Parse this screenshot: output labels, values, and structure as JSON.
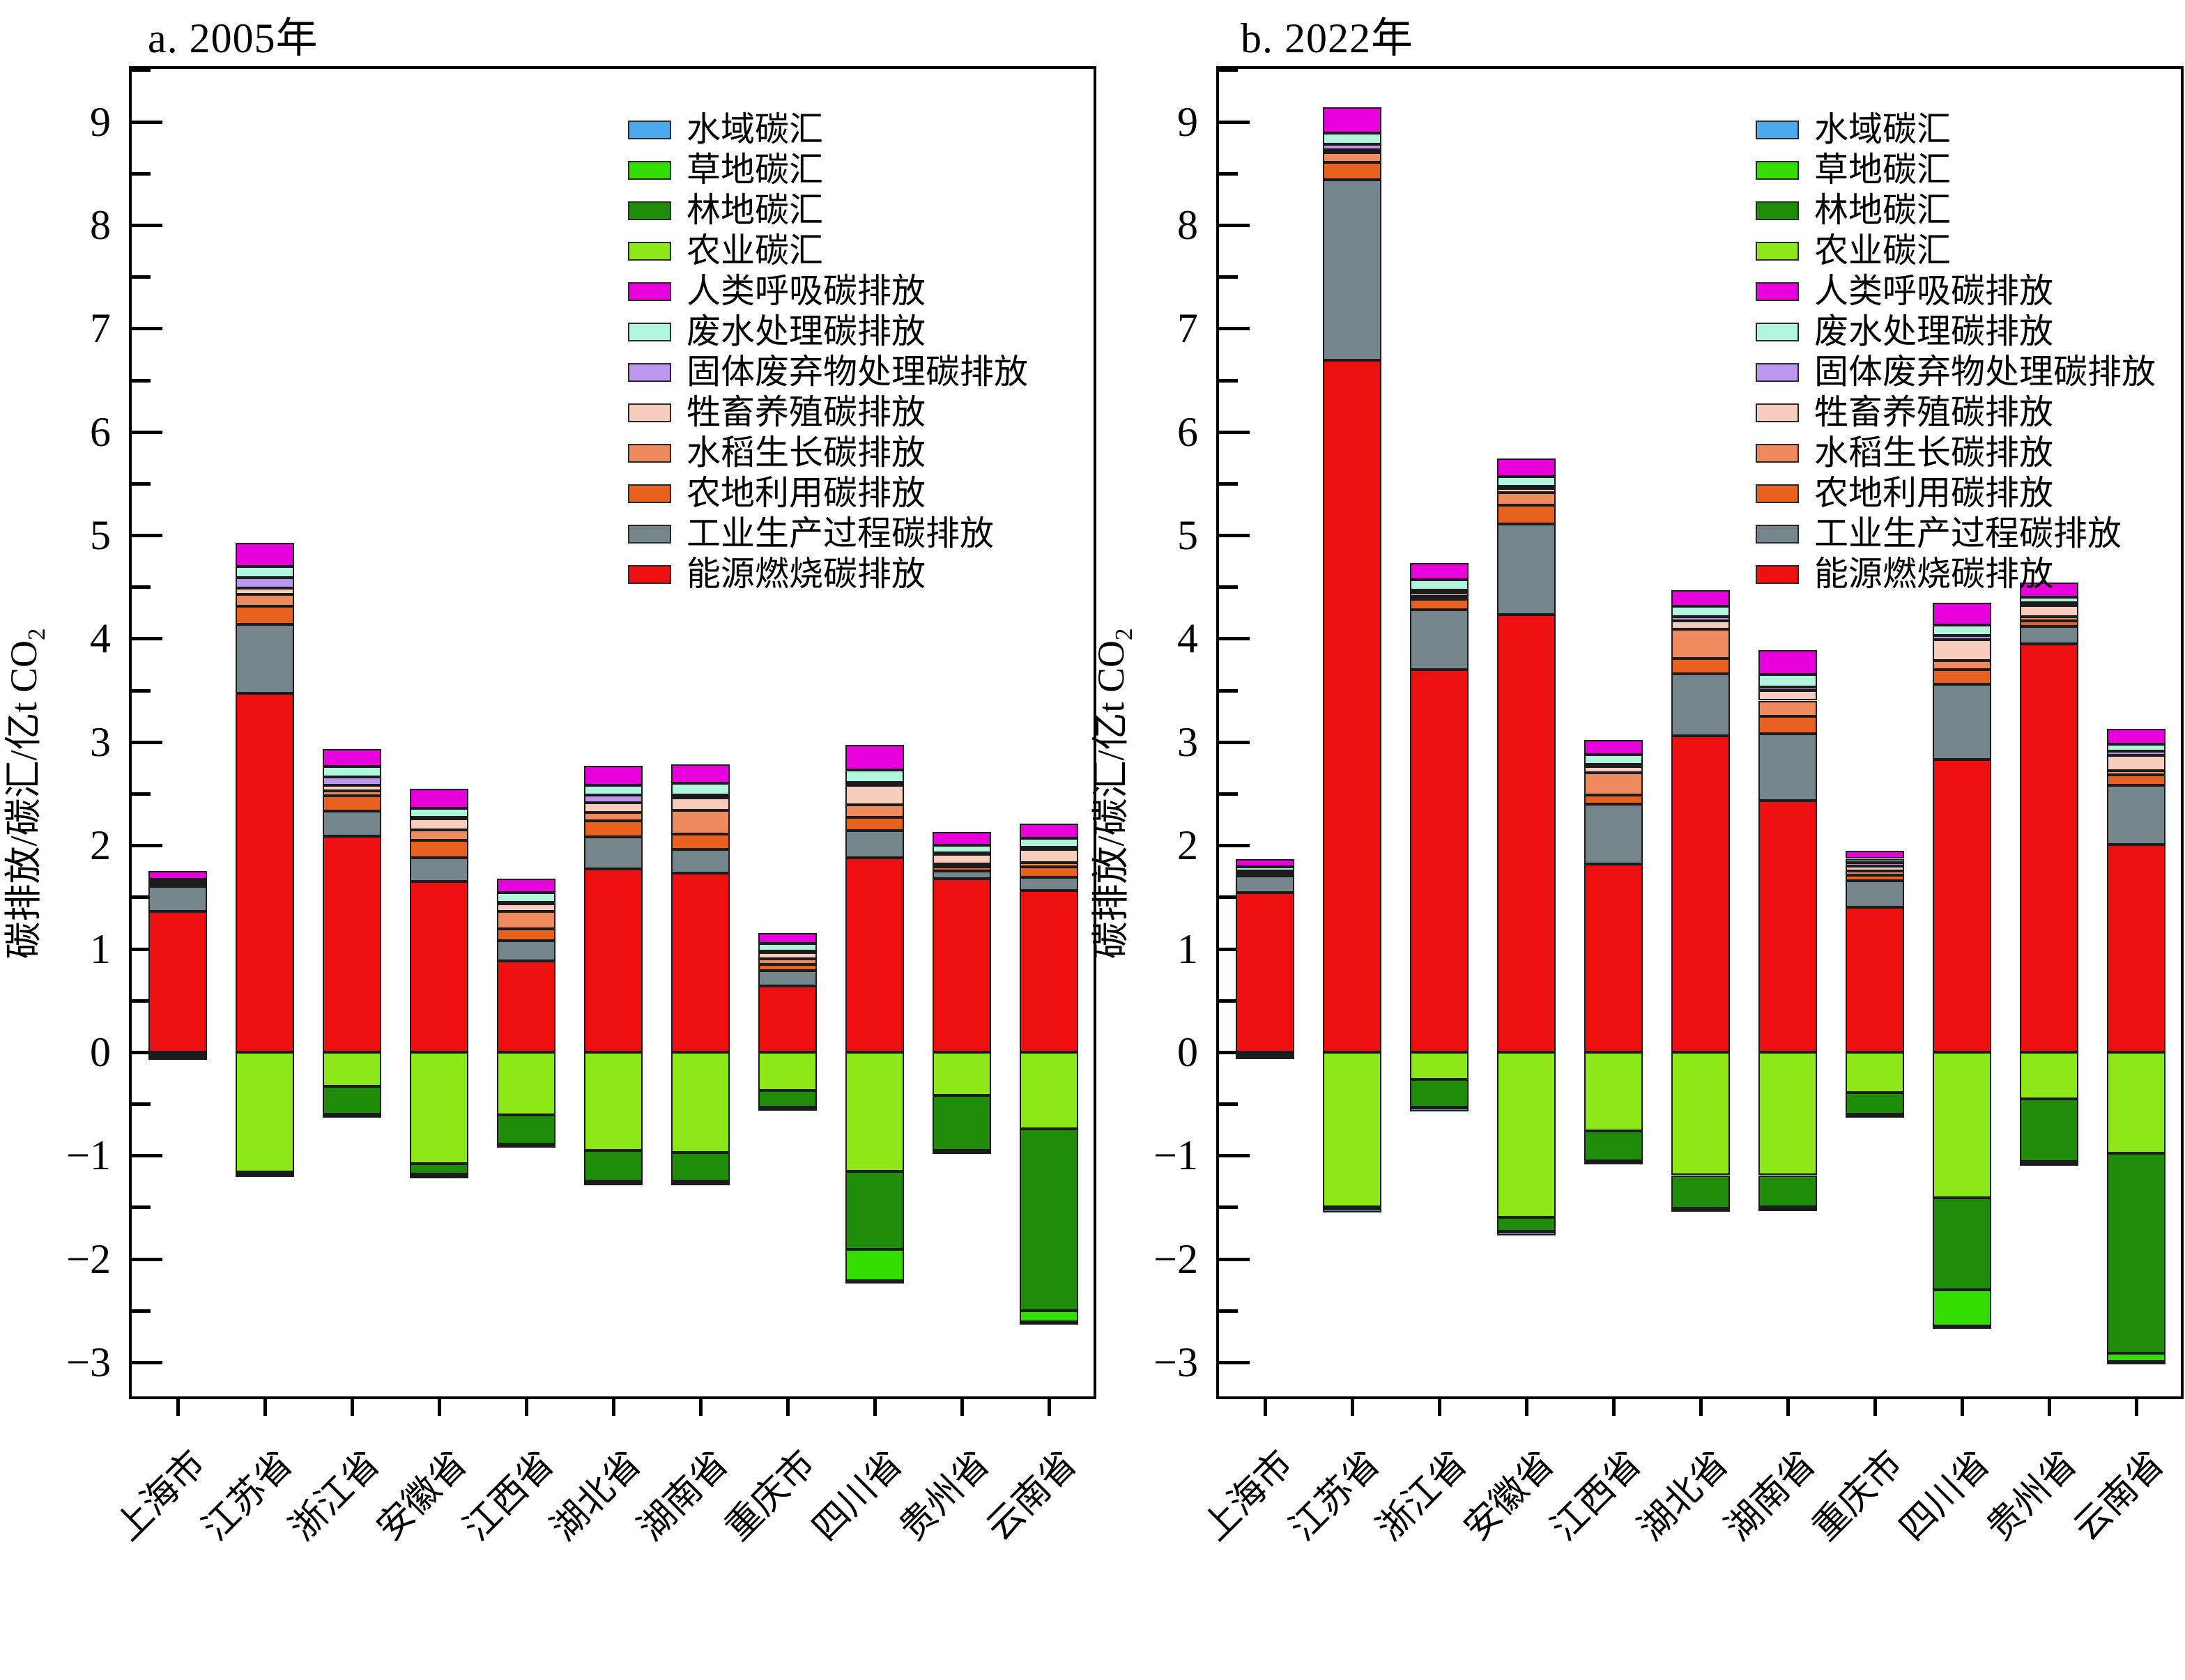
{
  "figure": {
    "ylabel_main": "碳排放/碳汇/亿t CO",
    "ylabel_sub": "2",
    "y_axis": {
      "min": -3,
      "max": 9,
      "major_step": 1,
      "minor_step": 0.5,
      "top_value": 9.51,
      "bottom_value": -3.33,
      "grid": "off"
    },
    "y_ticks": [
      {
        "value": 9,
        "label": "9"
      },
      {
        "value": 8,
        "label": "8"
      },
      {
        "value": 7,
        "label": "7"
      },
      {
        "value": 6,
        "label": "6"
      },
      {
        "value": 5,
        "label": "5"
      },
      {
        "value": 4,
        "label": "4"
      },
      {
        "value": 3,
        "label": "3"
      },
      {
        "value": 2,
        "label": "2"
      },
      {
        "value": 1,
        "label": "1"
      },
      {
        "value": 0,
        "label": "0"
      },
      {
        "value": -1,
        "label": "−1"
      },
      {
        "value": -2,
        "label": "−2"
      },
      {
        "value": -3,
        "label": "−3"
      }
    ]
  },
  "legend": [
    {
      "label": "水域碳汇",
      "color": "#4DA8EC"
    },
    {
      "label": "草地碳汇",
      "color": "#33DD00"
    },
    {
      "label": "林地碳汇",
      "color": "#1F8C0A"
    },
    {
      "label": "农业碳汇",
      "color": "#8EE818"
    },
    {
      "label": "人类呼吸碳排放",
      "color": "#E800DC"
    },
    {
      "label": "废水处理碳排放",
      "color": "#B2F5DF"
    },
    {
      "label": "固体废弃物处理碳排放",
      "color": "#BB95EE"
    },
    {
      "label": "牲畜养殖碳排放",
      "color": "#F6CDBC"
    },
    {
      "label": "水稻生长碳排放",
      "color": "#EE8A5D"
    },
    {
      "label": "农地利用碳排放",
      "color": "#E8611E"
    },
    {
      "label": "工业生产过程碳排放",
      "color": "#74868C"
    },
    {
      "label": "能源燃烧碳排放",
      "color": "#EE1010"
    }
  ],
  "provinces": [
    "上海市",
    "江苏省",
    "浙江省",
    "安徽省",
    "江西省",
    "湖北省",
    "湖南省",
    "重庆市",
    "四川省",
    "贵州省",
    "云南省"
  ],
  "chart_data": [
    {
      "type": "bar-stacked",
      "title": "a. 2005年",
      "categories": [
        "上海市",
        "江苏省",
        "浙江省",
        "安徽省",
        "江西省",
        "湖北省",
        "湖南省",
        "重庆市",
        "四川省",
        "贵州省",
        "云南省"
      ],
      "series": [
        {
          "name": "能源燃烧碳排放",
          "color": "#EE1010",
          "values": [
            1.36,
            3.47,
            2.09,
            1.65,
            0.88,
            1.77,
            1.73,
            0.64,
            1.88,
            1.68,
            1.56
          ]
        },
        {
          "name": "工业生产过程碳排放",
          "color": "#74868C",
          "values": [
            0.25,
            0.67,
            0.24,
            0.23,
            0.2,
            0.31,
            0.23,
            0.15,
            0.26,
            0.07,
            0.13
          ]
        },
        {
          "name": "农地利用碳排放",
          "color": "#E8611E",
          "values": [
            0.01,
            0.17,
            0.15,
            0.17,
            0.11,
            0.16,
            0.15,
            0.06,
            0.13,
            0.04,
            0.1
          ]
        },
        {
          "name": "水稻生长碳排放",
          "color": "#EE8A5D",
          "values": [
            0.01,
            0.12,
            0.05,
            0.1,
            0.17,
            0.08,
            0.23,
            0.05,
            0.12,
            0.03,
            0.04
          ]
        },
        {
          "name": "牲畜养殖碳排放",
          "color": "#F6CDBC",
          "values": [
            0.01,
            0.06,
            0.05,
            0.11,
            0.08,
            0.09,
            0.12,
            0.07,
            0.19,
            0.1,
            0.13
          ]
        },
        {
          "name": "固体废弃物处理碳排放",
          "color": "#BB95EE",
          "values": [
            0.01,
            0.1,
            0.08,
            0.01,
            0.01,
            0.08,
            0.03,
            0.01,
            0.03,
            0.01,
            0.02
          ]
        },
        {
          "name": "废水处理碳排放",
          "color": "#B2F5DF",
          "values": [
            0.02,
            0.11,
            0.1,
            0.09,
            0.09,
            0.09,
            0.11,
            0.07,
            0.12,
            0.07,
            0.09
          ]
        },
        {
          "name": "人类呼吸碳排放",
          "color": "#E800DC",
          "values": [
            0.08,
            0.23,
            0.17,
            0.19,
            0.14,
            0.19,
            0.18,
            0.1,
            0.24,
            0.13,
            0.14
          ]
        },
        {
          "name": "农业碳汇",
          "color": "#8EE818",
          "values": [
            -0.03,
            -1.16,
            -0.33,
            -1.08,
            -0.61,
            -0.95,
            -0.97,
            -0.37,
            -1.15,
            -0.42,
            -0.74
          ]
        },
        {
          "name": "林地碳汇",
          "color": "#1F8C0A",
          "values": [
            -0.01,
            -0.01,
            -0.27,
            -0.1,
            -0.28,
            -0.3,
            -0.28,
            -0.16,
            -0.76,
            -0.53,
            -1.76
          ]
        },
        {
          "name": "草地碳汇",
          "color": "#33DD00",
          "values": [
            -0.01,
            -0.01,
            -0.01,
            -0.01,
            -0.01,
            -0.01,
            -0.01,
            -0.01,
            -0.3,
            -0.01,
            -0.11
          ]
        },
        {
          "name": "水域碳汇",
          "color": "#4DA8EC",
          "values": [
            -0.02,
            -0.03,
            -0.02,
            -0.02,
            -0.02,
            -0.03,
            -0.02,
            -0.01,
            -0.03,
            -0.02,
            -0.02
          ]
        }
      ]
    },
    {
      "type": "bar-stacked",
      "title": "b. 2022年",
      "categories": [
        "上海市",
        "江苏省",
        "浙江省",
        "安徽省",
        "江西省",
        "湖北省",
        "湖南省",
        "重庆市",
        "四川省",
        "贵州省",
        "云南省"
      ],
      "series": [
        {
          "name": "能源燃烧碳排放",
          "color": "#EE1010",
          "values": [
            1.54,
            6.69,
            3.7,
            4.23,
            1.82,
            3.06,
            2.43,
            1.4,
            2.83,
            3.95,
            2.01
          ]
        },
        {
          "name": "工业生产过程碳排放",
          "color": "#74868C",
          "values": [
            0.17,
            1.75,
            0.58,
            0.88,
            0.58,
            0.6,
            0.65,
            0.26,
            0.73,
            0.17,
            0.57
          ]
        },
        {
          "name": "农地利用碳排放",
          "color": "#E8611E",
          "values": [
            0.01,
            0.17,
            0.1,
            0.18,
            0.09,
            0.15,
            0.17,
            0.05,
            0.14,
            0.05,
            0.1
          ]
        },
        {
          "name": "水稻生长碳排放",
          "color": "#EE8A5D",
          "values": [
            0.01,
            0.09,
            0.03,
            0.12,
            0.21,
            0.28,
            0.15,
            0.04,
            0.09,
            0.04,
            0.04
          ]
        },
        {
          "name": "牲畜养殖碳排放",
          "color": "#F6CDBC",
          "values": [
            0.01,
            0.03,
            0.03,
            0.04,
            0.06,
            0.08,
            0.1,
            0.05,
            0.2,
            0.11,
            0.15
          ]
        },
        {
          "name": "固体废弃物处理碳排放",
          "color": "#BB95EE",
          "values": [
            0.01,
            0.05,
            0.03,
            0.02,
            0.02,
            0.04,
            0.03,
            0.03,
            0.04,
            0.03,
            0.04
          ]
        },
        {
          "name": "废水处理碳排放",
          "color": "#B2F5DF",
          "values": [
            0.04,
            0.11,
            0.1,
            0.1,
            0.1,
            0.1,
            0.12,
            0.04,
            0.1,
            0.05,
            0.07
          ]
        },
        {
          "name": "人类呼吸碳排放",
          "color": "#E800DC",
          "values": [
            0.08,
            0.25,
            0.16,
            0.17,
            0.14,
            0.16,
            0.24,
            0.08,
            0.22,
            0.14,
            0.15
          ]
        },
        {
          "name": "农业碳汇",
          "color": "#8EE818",
          "values": [
            -0.03,
            -1.5,
            -0.26,
            -1.6,
            -0.76,
            -1.19,
            -1.19,
            -0.39,
            -1.41,
            -0.45,
            -0.98
          ]
        },
        {
          "name": "林地碳汇",
          "color": "#1F8C0A",
          "values": [
            -0.005,
            -0.01,
            -0.27,
            -0.13,
            -0.29,
            -0.32,
            -0.31,
            -0.21,
            -0.89,
            -0.61,
            -1.93
          ]
        },
        {
          "name": "草地碳汇",
          "color": "#33DD00",
          "values": [
            -0.005,
            -0.01,
            -0.01,
            -0.01,
            -0.01,
            -0.01,
            -0.01,
            -0.005,
            -0.35,
            -0.01,
            -0.08
          ]
        },
        {
          "name": "水域碳汇",
          "color": "#4DA8EC",
          "values": [
            -0.02,
            -0.03,
            -0.03,
            -0.03,
            -0.02,
            -0.02,
            -0.02,
            -0.01,
            -0.01,
            -0.01,
            -0.01
          ]
        }
      ]
    }
  ]
}
